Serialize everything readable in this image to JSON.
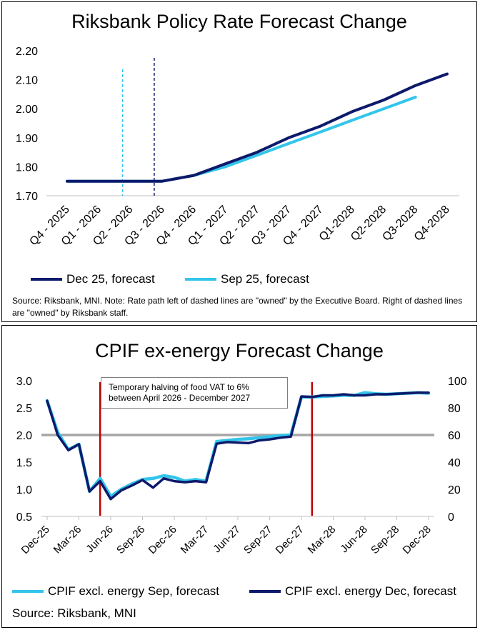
{
  "chart_data": [
    {
      "type": "line",
      "title": "Riksbank Policy Rate Forecast Change",
      "categories": [
        "Q4 - 2025",
        "Q1 - 2026",
        "Q2 - 2026",
        "Q3 - 2026",
        "Q4 - 2026",
        "Q1 - 2027",
        "Q2 - 2027",
        "Q3 - 2027",
        "Q4 - 2027",
        "Q1-2028",
        "Q2-2028",
        "Q3-2028",
        "Q4-2028"
      ],
      "ylim": [
        1.7,
        2.2
      ],
      "yticks": [
        "1.70",
        "1.80",
        "1.90",
        "2.00",
        "2.10",
        "2.20"
      ],
      "series": [
        {
          "name": "Dec 25, forecast",
          "color": "#0d1a6b",
          "values": [
            1.75,
            1.75,
            1.75,
            1.75,
            1.77,
            1.81,
            1.85,
            1.9,
            1.94,
            1.99,
            2.03,
            2.08,
            2.12
          ]
        },
        {
          "name": "Sep 25, forecast",
          "color": "#33c5ea",
          "values": [
            1.75,
            1.75,
            1.75,
            1.75,
            1.77,
            1.8,
            1.84,
            1.88,
            1.92,
            1.96,
            2.0,
            2.04,
            null
          ]
        }
      ],
      "dashed_lines": [
        {
          "category_index": 1.75,
          "color": "#33c5ea"
        },
        {
          "category_index": 2.75,
          "color": "#0d1a6b"
        }
      ],
      "legend": "bottom-left",
      "source": "Source: Riksbank, MNI. Note: Rate path left of dashed lines are \"owned\" by the Executive Board. Right of dashed lines are \"owned\" by Riksbank staff."
    },
    {
      "type": "line",
      "title": "CPIF ex-energy Forecast Change",
      "xticks": [
        "Dec-25",
        "Mar-26",
        "Jun-26",
        "Sep-26",
        "Dec-26",
        "Mar-27",
        "Jun-27",
        "Sep-27",
        "Dec-27",
        "Mar-28",
        "Jun-28",
        "Sep-28",
        "Dec-28"
      ],
      "ylim": [
        0.5,
        3.0
      ],
      "yticks": [
        "0.5",
        "1.0",
        "1.5",
        "2.0",
        "2.5",
        "3.0"
      ],
      "y2lim": [
        0,
        100
      ],
      "y2ticks": [
        "0",
        "20",
        "40",
        "60",
        "80",
        "100"
      ],
      "target": 2.0,
      "series": [
        {
          "name": "CPIF excl. energy Sep, forecast",
          "color": "#33c5ea",
          "values": [
            2.63,
            2.05,
            1.73,
            1.83,
            0.96,
            1.2,
            0.87,
            1.0,
            1.1,
            1.18,
            1.2,
            1.25,
            1.22,
            1.15,
            1.18,
            1.15,
            1.88,
            1.9,
            1.92,
            1.93,
            1.95,
            1.97,
            1.99,
            2.0,
            2.7,
            2.7,
            2.71,
            2.72,
            2.73,
            2.73,
            2.78,
            2.76,
            2.75,
            2.76,
            2.77,
            2.78,
            2.77
          ]
        },
        {
          "name": "CPIF excl. energy Dec, forecast",
          "color": "#0d1a6b",
          "values": [
            2.63,
            2.0,
            1.72,
            1.83,
            0.96,
            1.15,
            0.82,
            0.98,
            1.07,
            1.17,
            1.03,
            1.2,
            1.15,
            1.13,
            1.15,
            1.13,
            1.84,
            1.87,
            1.86,
            1.85,
            1.9,
            1.92,
            1.95,
            1.97,
            2.71,
            2.7,
            2.73,
            2.73,
            2.75,
            2.73,
            2.73,
            2.75,
            2.75,
            2.76,
            2.77,
            2.78,
            2.78
          ]
        }
      ],
      "vertical_lines_at_month": [
        5,
        25
      ],
      "annotation": "Temporary halving of food VAT to 6% between April 2026 - December 2027",
      "legend": "bottom",
      "source": "Source: Riksbank, MNI"
    }
  ]
}
